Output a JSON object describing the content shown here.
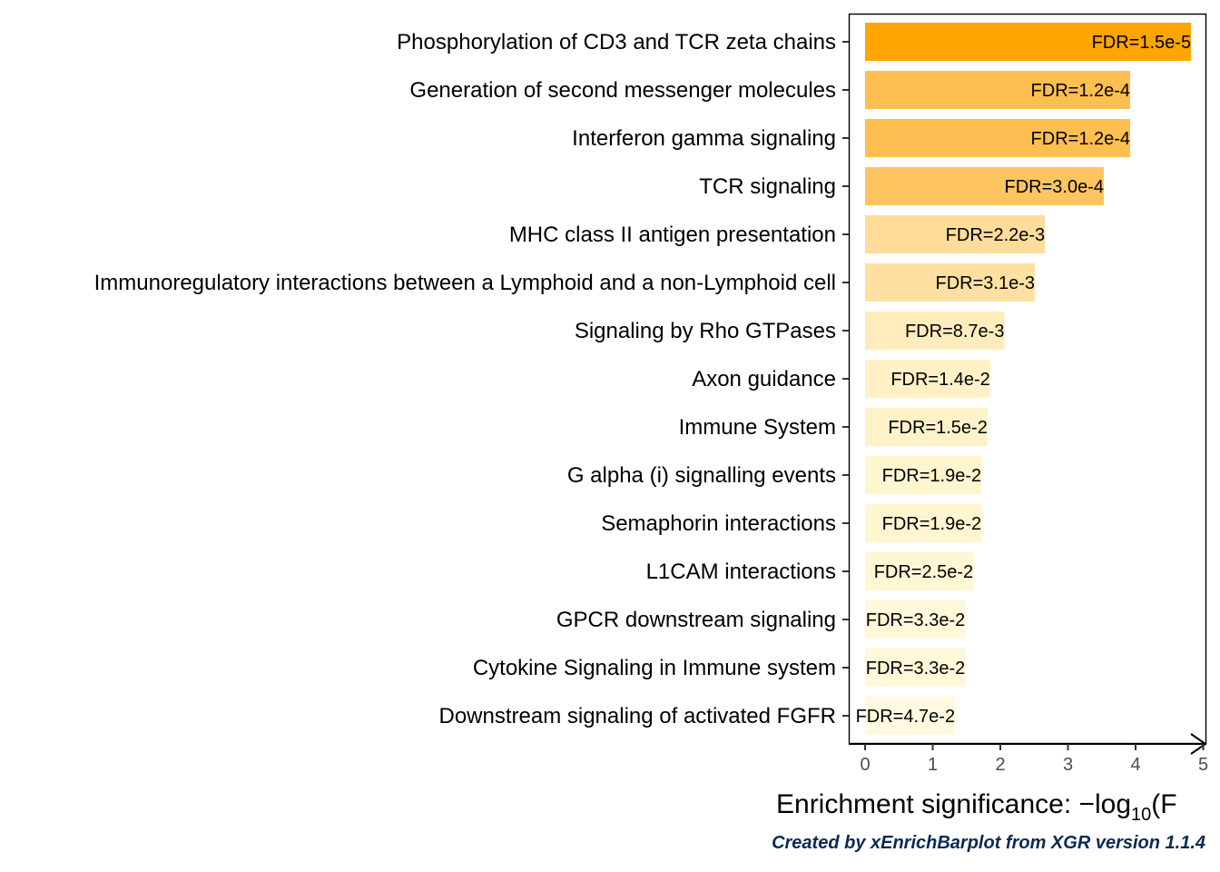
{
  "chart_data": {
    "type": "bar",
    "orientation": "horizontal",
    "categories": [
      "Phosphorylation of CD3 and TCR zeta chains",
      "Generation of second messenger molecules",
      "Interferon gamma signaling",
      "TCR signaling",
      "MHC class II antigen presentation",
      "Immunoregulatory interactions between a Lymphoid and a non-Lymphoid cell",
      "Signaling by Rho GTPases",
      "Axon guidance",
      "Immune System",
      "G alpha (i) signalling events",
      "Semaphorin interactions",
      "L1CAM interactions",
      "GPCR downstream signaling",
      "Cytokine Signaling in Immune system",
      "Downstream signaling of activated FGFR"
    ],
    "values": [
      4.82,
      3.92,
      3.92,
      3.53,
      2.66,
      2.51,
      2.06,
      1.85,
      1.81,
      1.72,
      1.72,
      1.6,
      1.48,
      1.48,
      1.33
    ],
    "bar_labels": [
      "FDR=1.5e-5",
      "FDR=1.2e-4",
      "FDR=1.2e-4",
      "FDR=3.0e-4",
      "FDR=2.2e-3",
      "FDR=3.1e-3",
      "FDR=8.7e-3",
      "FDR=1.4e-2",
      "FDR=1.5e-2",
      "FDR=1.9e-2",
      "FDR=1.9e-2",
      "FDR=2.5e-2",
      "FDR=3.3e-2",
      "FDR=3.3e-2",
      "FDR=4.7e-2"
    ],
    "bar_colors": [
      "#ffa500",
      "#ffbe50",
      "#ffbe50",
      "#ffc462",
      "#ffdc99",
      "#ffe0a0",
      "#ffecbc",
      "#fff0c6",
      "#fff2c9",
      "#fff5cf",
      "#fff5cf",
      "#fff6d4",
      "#fff8d9",
      "#fff8d9",
      "#fffadf"
    ],
    "xlabel": "Enrichment significance: −log",
    "xlabel_subscript": "10",
    "xlabel_tail": "(F",
    "xlim": [
      0,
      5
    ],
    "x_ticks": [
      "0",
      "1",
      "2",
      "3",
      "4",
      "5"
    ],
    "grid": false,
    "legend": "none"
  },
  "caption": "Created by xEnrichBarplot from XGR version 1.1.4"
}
